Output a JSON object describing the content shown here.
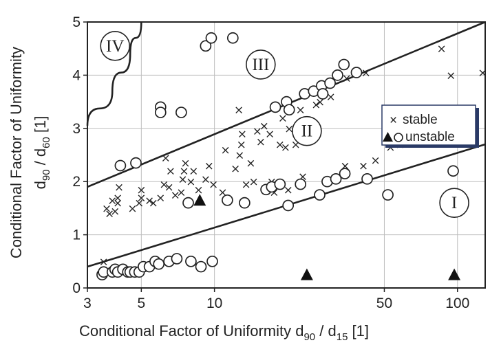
{
  "chart_data": {
    "type": "scatter",
    "x_axis": {
      "label_main": "Conditional Factor of Uniformity d",
      "label_sub1": "90",
      "label_mid": " / d",
      "label_sub2": "15",
      "label_tail": "  [1]",
      "scale": "log",
      "range": [
        3,
        130
      ],
      "ticks": [
        3,
        5,
        10,
        50,
        100
      ],
      "tick_labels": [
        "3",
        "5",
        "10",
        "50",
        "100"
      ]
    },
    "y_axis": {
      "outer_label": "Conditional Factor of Uniformity",
      "inner_label_a": "d",
      "inner_sub_a": "90",
      "inner_label_b": " / d",
      "inner_sub_b": "60",
      "inner_label_c": " [1]",
      "scale": "linear",
      "range": [
        0,
        5
      ],
      "ticks": [
        0,
        1,
        2,
        3,
        4,
        5
      ],
      "tick_labels": [
        "0",
        "1",
        "2",
        "3",
        "4",
        "5"
      ]
    },
    "grid": true,
    "legend": {
      "position": "right",
      "entries": [
        {
          "symbol": "×",
          "label": "stable"
        },
        {
          "symbol": "▲○",
          "label": "unstable"
        }
      ]
    },
    "boundary_lines": [
      {
        "x": [
          3,
          130
        ],
        "y": [
          1.9,
          5.0
        ]
      },
      {
        "x": [
          3,
          130
        ],
        "y": [
          0.4,
          2.7
        ]
      },
      {
        "x": [
          3,
          3.8,
          4.5,
          5.0
        ],
        "y": [
          3.05,
          3.7,
          4.4,
          5.0
        ]
      }
    ],
    "regions": [
      {
        "label": "I",
        "x": 97,
        "y": 1.6
      },
      {
        "label": "II",
        "x": 24,
        "y": 2.95
      },
      {
        "label": "III",
        "x": 15.5,
        "y": 4.2
      },
      {
        "label": "IV",
        "x": 3.9,
        "y": 4.55
      }
    ],
    "series": [
      {
        "name": "stable",
        "marker": "x",
        "points": [
          [
            3.5,
            0.5
          ],
          [
            3.6,
            1.5
          ],
          [
            3.7,
            1.4
          ],
          [
            3.8,
            1.65
          ],
          [
            3.9,
            1.45
          ],
          [
            4.0,
            1.6
          ],
          [
            4.0,
            1.7
          ],
          [
            4.05,
            1.9
          ],
          [
            4.6,
            1.5
          ],
          [
            4.9,
            1.6
          ],
          [
            5.0,
            1.85
          ],
          [
            5.0,
            1.7
          ],
          [
            5.4,
            1.65
          ],
          [
            5.6,
            1.6
          ],
          [
            6.0,
            1.7
          ],
          [
            6.2,
            1.95
          ],
          [
            6.3,
            2.45
          ],
          [
            6.5,
            1.9
          ],
          [
            6.6,
            2.2
          ],
          [
            6.9,
            1.75
          ],
          [
            7.3,
            1.8
          ],
          [
            7.4,
            2.05
          ],
          [
            7.5,
            2.2
          ],
          [
            7.6,
            2.35
          ],
          [
            8.0,
            2.0
          ],
          [
            8.2,
            2.2
          ],
          [
            8.6,
            1.85
          ],
          [
            9.2,
            2.05
          ],
          [
            9.5,
            2.3
          ],
          [
            9.9,
            1.95
          ],
          [
            10.8,
            1.8
          ],
          [
            11.1,
            2.6
          ],
          [
            12.2,
            2.25
          ],
          [
            12.7,
            2.5
          ],
          [
            12.6,
            3.35
          ],
          [
            12.9,
            2.7
          ],
          [
            13.0,
            2.9
          ],
          [
            13.5,
            1.95
          ],
          [
            14.1,
            2.35
          ],
          [
            14.5,
            2.0
          ],
          [
            15.0,
            2.95
          ],
          [
            15.5,
            2.75
          ],
          [
            16.0,
            3.05
          ],
          [
            16.9,
            2.9
          ],
          [
            17.2,
            2.0
          ],
          [
            17.6,
            1.8
          ],
          [
            18.1,
            3.4
          ],
          [
            18.6,
            2.7
          ],
          [
            19.1,
            3.2
          ],
          [
            19.6,
            2.65
          ],
          [
            20.1,
            1.85
          ],
          [
            20.3,
            3.0
          ],
          [
            21.6,
            2.7
          ],
          [
            22.6,
            3.35
          ],
          [
            23.1,
            2.1
          ],
          [
            26.2,
            3.45
          ],
          [
            27.2,
            3.5
          ],
          [
            30.1,
            3.6
          ],
          [
            34.5,
            2.3
          ],
          [
            35.0,
            3.95
          ],
          [
            41.0,
            2.3
          ],
          [
            42.0,
            4.05
          ],
          [
            46.0,
            2.4
          ],
          [
            53.0,
            2.65
          ],
          [
            58.0,
            2.7
          ],
          [
            86.0,
            4.5
          ],
          [
            94.0,
            4.0
          ],
          [
            127.0,
            4.05
          ]
        ]
      },
      {
        "name": "unstable",
        "marker": "circle",
        "points": [
          [
            3.45,
            0.25
          ],
          [
            3.5,
            0.3
          ],
          [
            3.8,
            0.3
          ],
          [
            3.9,
            0.35
          ],
          [
            4.0,
            0.3
          ],
          [
            4.1,
            2.3
          ],
          [
            4.2,
            0.35
          ],
          [
            4.4,
            0.3
          ],
          [
            4.5,
            0.3
          ],
          [
            4.7,
            0.3
          ],
          [
            4.75,
            2.35
          ],
          [
            4.9,
            0.3
          ],
          [
            5.1,
            0.4
          ],
          [
            5.4,
            0.4
          ],
          [
            5.7,
            0.5
          ],
          [
            5.9,
            0.45
          ],
          [
            6.0,
            3.4
          ],
          [
            6.0,
            3.3
          ],
          [
            6.5,
            0.5
          ],
          [
            7.0,
            0.55
          ],
          [
            7.3,
            3.3
          ],
          [
            7.8,
            1.6
          ],
          [
            8.0,
            0.5
          ],
          [
            8.8,
            0.4
          ],
          [
            9.2,
            4.55
          ],
          [
            9.7,
            4.7
          ],
          [
            9.8,
            0.5
          ],
          [
            11.3,
            1.65
          ],
          [
            11.9,
            4.7
          ],
          [
            13.3,
            1.6
          ],
          [
            16.3,
            1.85
          ],
          [
            17.2,
            1.9
          ],
          [
            17.8,
            3.4
          ],
          [
            18.6,
            1.95
          ],
          [
            19.8,
            3.5
          ],
          [
            20.1,
            1.55
          ],
          [
            20.3,
            3.35
          ],
          [
            22.6,
            1.95
          ],
          [
            23.5,
            3.65
          ],
          [
            25.6,
            3.7
          ],
          [
            27.1,
            1.75
          ],
          [
            27.6,
            3.8
          ],
          [
            27.9,
            3.65
          ],
          [
            29.1,
            2.0
          ],
          [
            29.9,
            3.85
          ],
          [
            31.6,
            2.05
          ],
          [
            32.1,
            4.0
          ],
          [
            34.1,
            4.2
          ],
          [
            34.4,
            2.15
          ],
          [
            38.4,
            4.05
          ],
          [
            42.5,
            2.05
          ],
          [
            51.7,
            1.75
          ],
          [
            96.0,
            2.2
          ]
        ]
      },
      {
        "name": "unstable",
        "marker": "triangle",
        "points": [
          [
            8.7,
            1.65
          ],
          [
            24.0,
            0.25
          ],
          [
            97.0,
            0.25
          ]
        ]
      }
    ]
  }
}
